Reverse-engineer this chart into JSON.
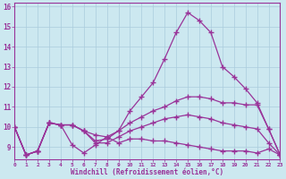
{
  "xlabel": "Windchill (Refroidissement éolien,°C)",
  "x": [
    0,
    1,
    2,
    3,
    4,
    5,
    6,
    7,
    8,
    9,
    10,
    11,
    12,
    13,
    14,
    15,
    16,
    17,
    18,
    19,
    20,
    21,
    22,
    23
  ],
  "line1": [
    10.0,
    8.6,
    8.8,
    10.2,
    10.1,
    9.1,
    8.7,
    9.1,
    9.5,
    9.2,
    9.4,
    9.4,
    9.3,
    9.3,
    9.2,
    9.1,
    9.0,
    8.9,
    8.8,
    8.8,
    8.8,
    8.7,
    8.9,
    8.6
  ],
  "line2": [
    10.0,
    8.6,
    8.8,
    10.2,
    10.1,
    10.1,
    9.8,
    9.6,
    9.5,
    9.8,
    10.8,
    11.5,
    12.2,
    13.4,
    14.7,
    15.7,
    15.3,
    14.7,
    13.0,
    12.5,
    11.9,
    11.2,
    9.9,
    8.6
  ],
  "line3": [
    10.0,
    8.6,
    8.8,
    10.2,
    10.1,
    10.1,
    9.8,
    9.3,
    9.4,
    9.8,
    10.2,
    10.5,
    10.8,
    11.0,
    11.3,
    11.5,
    11.5,
    11.4,
    11.2,
    11.2,
    11.1,
    11.1,
    9.9,
    8.6
  ],
  "line4": [
    10.0,
    8.6,
    8.8,
    10.2,
    10.1,
    10.1,
    9.8,
    9.2,
    9.2,
    9.5,
    9.8,
    10.0,
    10.2,
    10.4,
    10.5,
    10.6,
    10.5,
    10.4,
    10.2,
    10.1,
    10.0,
    9.9,
    9.2,
    8.6
  ],
  "line_color": "#993399",
  "bg_color": "#cce8f0",
  "grid_color": "#aaccdd",
  "xlim": [
    0,
    23
  ],
  "ylim": [
    8.4,
    16.2
  ],
  "yticks": [
    9,
    10,
    11,
    12,
    13,
    14,
    15,
    16
  ],
  "xtick_labels": [
    "0",
    "1",
    "2",
    "3",
    "4",
    "5",
    "6",
    "7",
    "8",
    "9",
    "10",
    "11",
    "12",
    "13",
    "14",
    "15",
    "16",
    "17",
    "18",
    "19",
    "20",
    "21",
    "22",
    "23"
  ]
}
